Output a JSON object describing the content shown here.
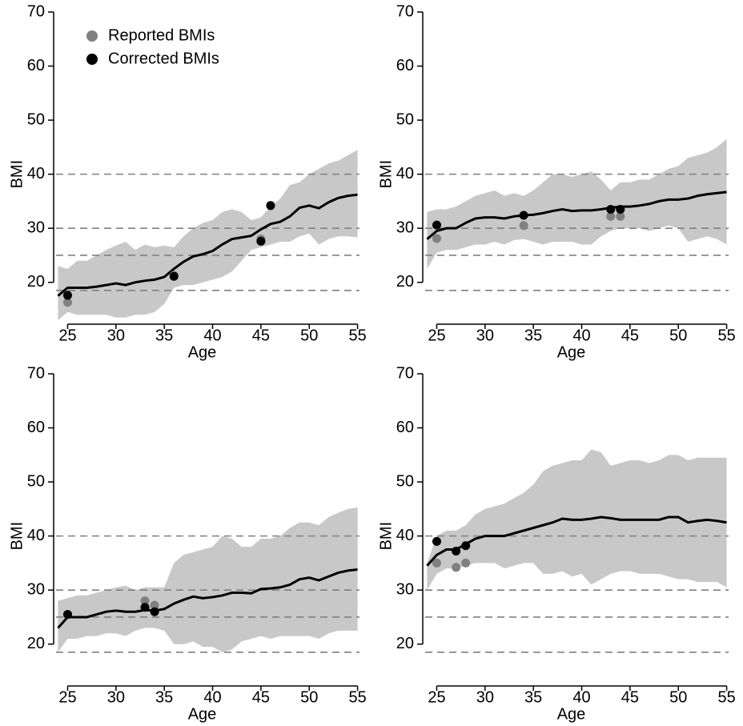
{
  "chart_data": [
    {
      "type": "line",
      "x_label": "Age",
      "y_label": "BMI",
      "xlim": [
        23.8,
        55.2
      ],
      "ylim": [
        13,
        70
      ],
      "xticks": [
        25,
        30,
        35,
        40,
        45,
        50,
        55
      ],
      "yticks": [
        20,
        30,
        40,
        50,
        60,
        70
      ],
      "hlines": [
        18.5,
        25,
        30,
        40
      ],
      "hline_color": "#808080",
      "legend": "upper left",
      "x": [
        24,
        25,
        26,
        27,
        28,
        29,
        30,
        31,
        32,
        33,
        34,
        35,
        36,
        37,
        38,
        39,
        40,
        41,
        42,
        43,
        44,
        45,
        46,
        47,
        48,
        49,
        50,
        51,
        52,
        53,
        54,
        55
      ],
      "line": {
        "color": "#000000",
        "values": [
          17.5,
          19,
          19,
          19,
          19.2,
          19.5,
          19.8,
          19.5,
          20,
          20.3,
          20.5,
          21,
          22.5,
          23.8,
          24.8,
          25.2,
          25.8,
          27,
          28,
          28.3,
          28.6,
          29.8,
          30.8,
          31.2,
          32.2,
          33.8,
          34.2,
          33.7,
          34.8,
          35.6,
          36,
          36.2
        ]
      },
      "band": {
        "color": "#c8c8c8",
        "upper": [
          23,
          22.5,
          24,
          24,
          25,
          26,
          26.8,
          27.5,
          26,
          27,
          26.5,
          26.8,
          26.5,
          28.5,
          30,
          31,
          31.5,
          33,
          33.5,
          33,
          31.5,
          32,
          34,
          35.5,
          38,
          38.5,
          40,
          41,
          42,
          42.5,
          43.5,
          44.5
        ],
        "lower": [
          13,
          14.5,
          14,
          14,
          14,
          14,
          13.5,
          13.5,
          14,
          14,
          14.5,
          16,
          19,
          19.5,
          19.5,
          20,
          20.5,
          21,
          22,
          24,
          26,
          26.5,
          27,
          27.5,
          27.5,
          28.5,
          29,
          27,
          28,
          28.5,
          28.5,
          28.3
        ]
      },
      "points": [
        {
          "name": "Reported BMIs",
          "color": "#808080",
          "x": [
            25,
            36,
            45,
            46
          ],
          "values": [
            16.3,
            21.3,
            28,
            34.2
          ]
        },
        {
          "name": "Corrected BMIs",
          "color": "#000000",
          "x": [
            25,
            36,
            45,
            46
          ],
          "values": [
            17.6,
            21.1,
            27.6,
            34.2
          ]
        }
      ]
    },
    {
      "type": "line",
      "x_label": "Age",
      "y_label": "BMI",
      "xlim": [
        23.8,
        55.2
      ],
      "ylim": [
        13,
        70
      ],
      "xticks": [
        25,
        30,
        35,
        40,
        45,
        50,
        55
      ],
      "yticks": [
        20,
        30,
        40,
        50,
        60,
        70
      ],
      "hlines": [
        18.5,
        25,
        30,
        40
      ],
      "hline_color": "#808080",
      "x": [
        24,
        25,
        26,
        27,
        28,
        29,
        30,
        31,
        32,
        33,
        34,
        35,
        36,
        37,
        38,
        39,
        40,
        41,
        42,
        43,
        44,
        45,
        46,
        47,
        48,
        49,
        50,
        51,
        52,
        53,
        54,
        55
      ],
      "line": {
        "color": "#000000",
        "values": [
          28,
          29.5,
          30,
          30,
          31,
          31.8,
          32,
          32,
          31.8,
          32.2,
          32.4,
          32.5,
          32.8,
          33.2,
          33.5,
          33.2,
          33.3,
          33.3,
          33.5,
          33.8,
          34,
          34,
          34.2,
          34.5,
          35,
          35.3,
          35.3,
          35.5,
          36,
          36.3,
          36.5,
          36.7
        ]
      },
      "band": {
        "color": "#c8c8c8",
        "upper": [
          33,
          33.5,
          33.5,
          34,
          35,
          36,
          36.5,
          37,
          36,
          36.5,
          36,
          37,
          38.5,
          40,
          40,
          39.5,
          40,
          40.5,
          39,
          37,
          38.5,
          38.5,
          39,
          39,
          40,
          41,
          41.5,
          43,
          43.5,
          44,
          45,
          46.5
        ],
        "lower": [
          22.5,
          25.5,
          26,
          26,
          26.5,
          27,
          27,
          27.5,
          27,
          27.8,
          28,
          27.5,
          27,
          27.5,
          27.5,
          27.5,
          27,
          27,
          28.5,
          29.5,
          30,
          30,
          30,
          29.5,
          30,
          30.5,
          30,
          27.5,
          28,
          28.5,
          28,
          27
        ]
      },
      "points": [
        {
          "color": "#808080",
          "x": [
            25,
            34,
            43,
            44
          ],
          "values": [
            28.1,
            30.5,
            32.2,
            32.2
          ]
        },
        {
          "color": "#000000",
          "x": [
            25,
            34,
            43,
            44
          ],
          "values": [
            30.6,
            32.4,
            33.5,
            33.5
          ]
        }
      ]
    },
    {
      "type": "line",
      "x_label": "Age",
      "y_label": "BMI",
      "xlim": [
        23.8,
        55.2
      ],
      "ylim": [
        13,
        70
      ],
      "xticks": [
        25,
        30,
        35,
        40,
        45,
        50,
        55
      ],
      "yticks": [
        20,
        30,
        40,
        50,
        60,
        70
      ],
      "hlines": [
        18.5,
        25,
        30,
        40
      ],
      "hline_color": "#808080",
      "x": [
        24,
        25,
        26,
        27,
        28,
        29,
        30,
        31,
        32,
        33,
        34,
        35,
        36,
        37,
        38,
        39,
        40,
        41,
        42,
        43,
        44,
        45,
        46,
        47,
        48,
        49,
        50,
        51,
        52,
        53,
        54,
        55
      ],
      "line": {
        "color": "#000000",
        "values": [
          23,
          25,
          25,
          25,
          25.5,
          26,
          26.2,
          26,
          26,
          26.3,
          26.2,
          26.5,
          27.5,
          28.2,
          28.8,
          28.5,
          28.7,
          29,
          29.5,
          29.5,
          29.4,
          30.2,
          30.3,
          30.5,
          31,
          32,
          32.3,
          31.8,
          32.5,
          33.2,
          33.6,
          33.8
        ]
      },
      "band": {
        "color": "#c8c8c8",
        "upper": [
          28,
          28.5,
          29,
          29,
          29.5,
          30,
          30.5,
          30.8,
          30,
          30.5,
          30.5,
          30.5,
          35,
          36.5,
          37,
          37.5,
          38,
          40,
          39.5,
          38,
          38,
          39.5,
          39.5,
          40,
          41.5,
          42.5,
          42.5,
          42,
          43.5,
          44.3,
          45,
          45.3
        ],
        "lower": [
          18.5,
          21,
          21,
          21.5,
          21.5,
          22,
          22,
          21.5,
          22.5,
          23,
          23,
          22.5,
          20,
          20,
          20.5,
          19.5,
          19.5,
          18.5,
          19,
          20.5,
          21,
          21.5,
          21,
          21.5,
          21.5,
          21.5,
          21.5,
          21,
          22,
          22.5,
          22.5,
          22.5
        ]
      },
      "points": [
        {
          "color": "#808080",
          "x": [
            25,
            33,
            34
          ],
          "values": [
            25.5,
            28,
            27.2
          ]
        },
        {
          "color": "#000000",
          "x": [
            25,
            33,
            34
          ],
          "values": [
            25.5,
            26.8,
            26
          ]
        }
      ]
    },
    {
      "type": "line",
      "x_label": "Age",
      "y_label": "BMI",
      "xlim": [
        23.8,
        55.2
      ],
      "ylim": [
        13,
        70
      ],
      "xticks": [
        25,
        30,
        35,
        40,
        45,
        50,
        55
      ],
      "yticks": [
        20,
        30,
        40,
        50,
        60,
        70
      ],
      "hlines": [
        18.5,
        25,
        30,
        40
      ],
      "hline_color": "#808080",
      "x": [
        24,
        25,
        26,
        27,
        28,
        29,
        30,
        31,
        32,
        33,
        34,
        35,
        36,
        37,
        38,
        39,
        40,
        41,
        42,
        43,
        44,
        45,
        46,
        47,
        48,
        49,
        50,
        51,
        52,
        53,
        54,
        55
      ],
      "line": {
        "color": "#000000",
        "values": [
          34.5,
          36.5,
          37.5,
          37.5,
          38.5,
          39.5,
          40,
          40,
          40,
          40.5,
          41,
          41.5,
          42,
          42.5,
          43.2,
          43,
          43,
          43.2,
          43.5,
          43.3,
          43,
          43,
          43,
          43,
          43,
          43.5,
          43.5,
          42.5,
          42.8,
          43,
          42.8,
          42.5
        ]
      },
      "band": {
        "color": "#c8c8c8",
        "upper": [
          35,
          40,
          41,
          41,
          42,
          44,
          45,
          45.5,
          46,
          47,
          48,
          49.5,
          52,
          53,
          53.5,
          54,
          54,
          56,
          55.5,
          53,
          53.5,
          54,
          54,
          53.5,
          54,
          55,
          55,
          54,
          54.5,
          54.5,
          54.5,
          54.5
        ],
        "lower": [
          30,
          33,
          34,
          34,
          34.5,
          35,
          35,
          35,
          34,
          34.5,
          35,
          35,
          33,
          33,
          33.5,
          32.5,
          33,
          31,
          32,
          33,
          33.5,
          33.5,
          33,
          33,
          33,
          32.5,
          32,
          32,
          31.5,
          31.5,
          31.5,
          30.5
        ]
      },
      "points": [
        {
          "color": "#808080",
          "x": [
            25,
            27,
            28
          ],
          "values": [
            35,
            34.2,
            35
          ]
        },
        {
          "color": "#000000",
          "x": [
            25,
            27,
            28
          ],
          "values": [
            39,
            37.2,
            38.2
          ]
        }
      ]
    }
  ]
}
